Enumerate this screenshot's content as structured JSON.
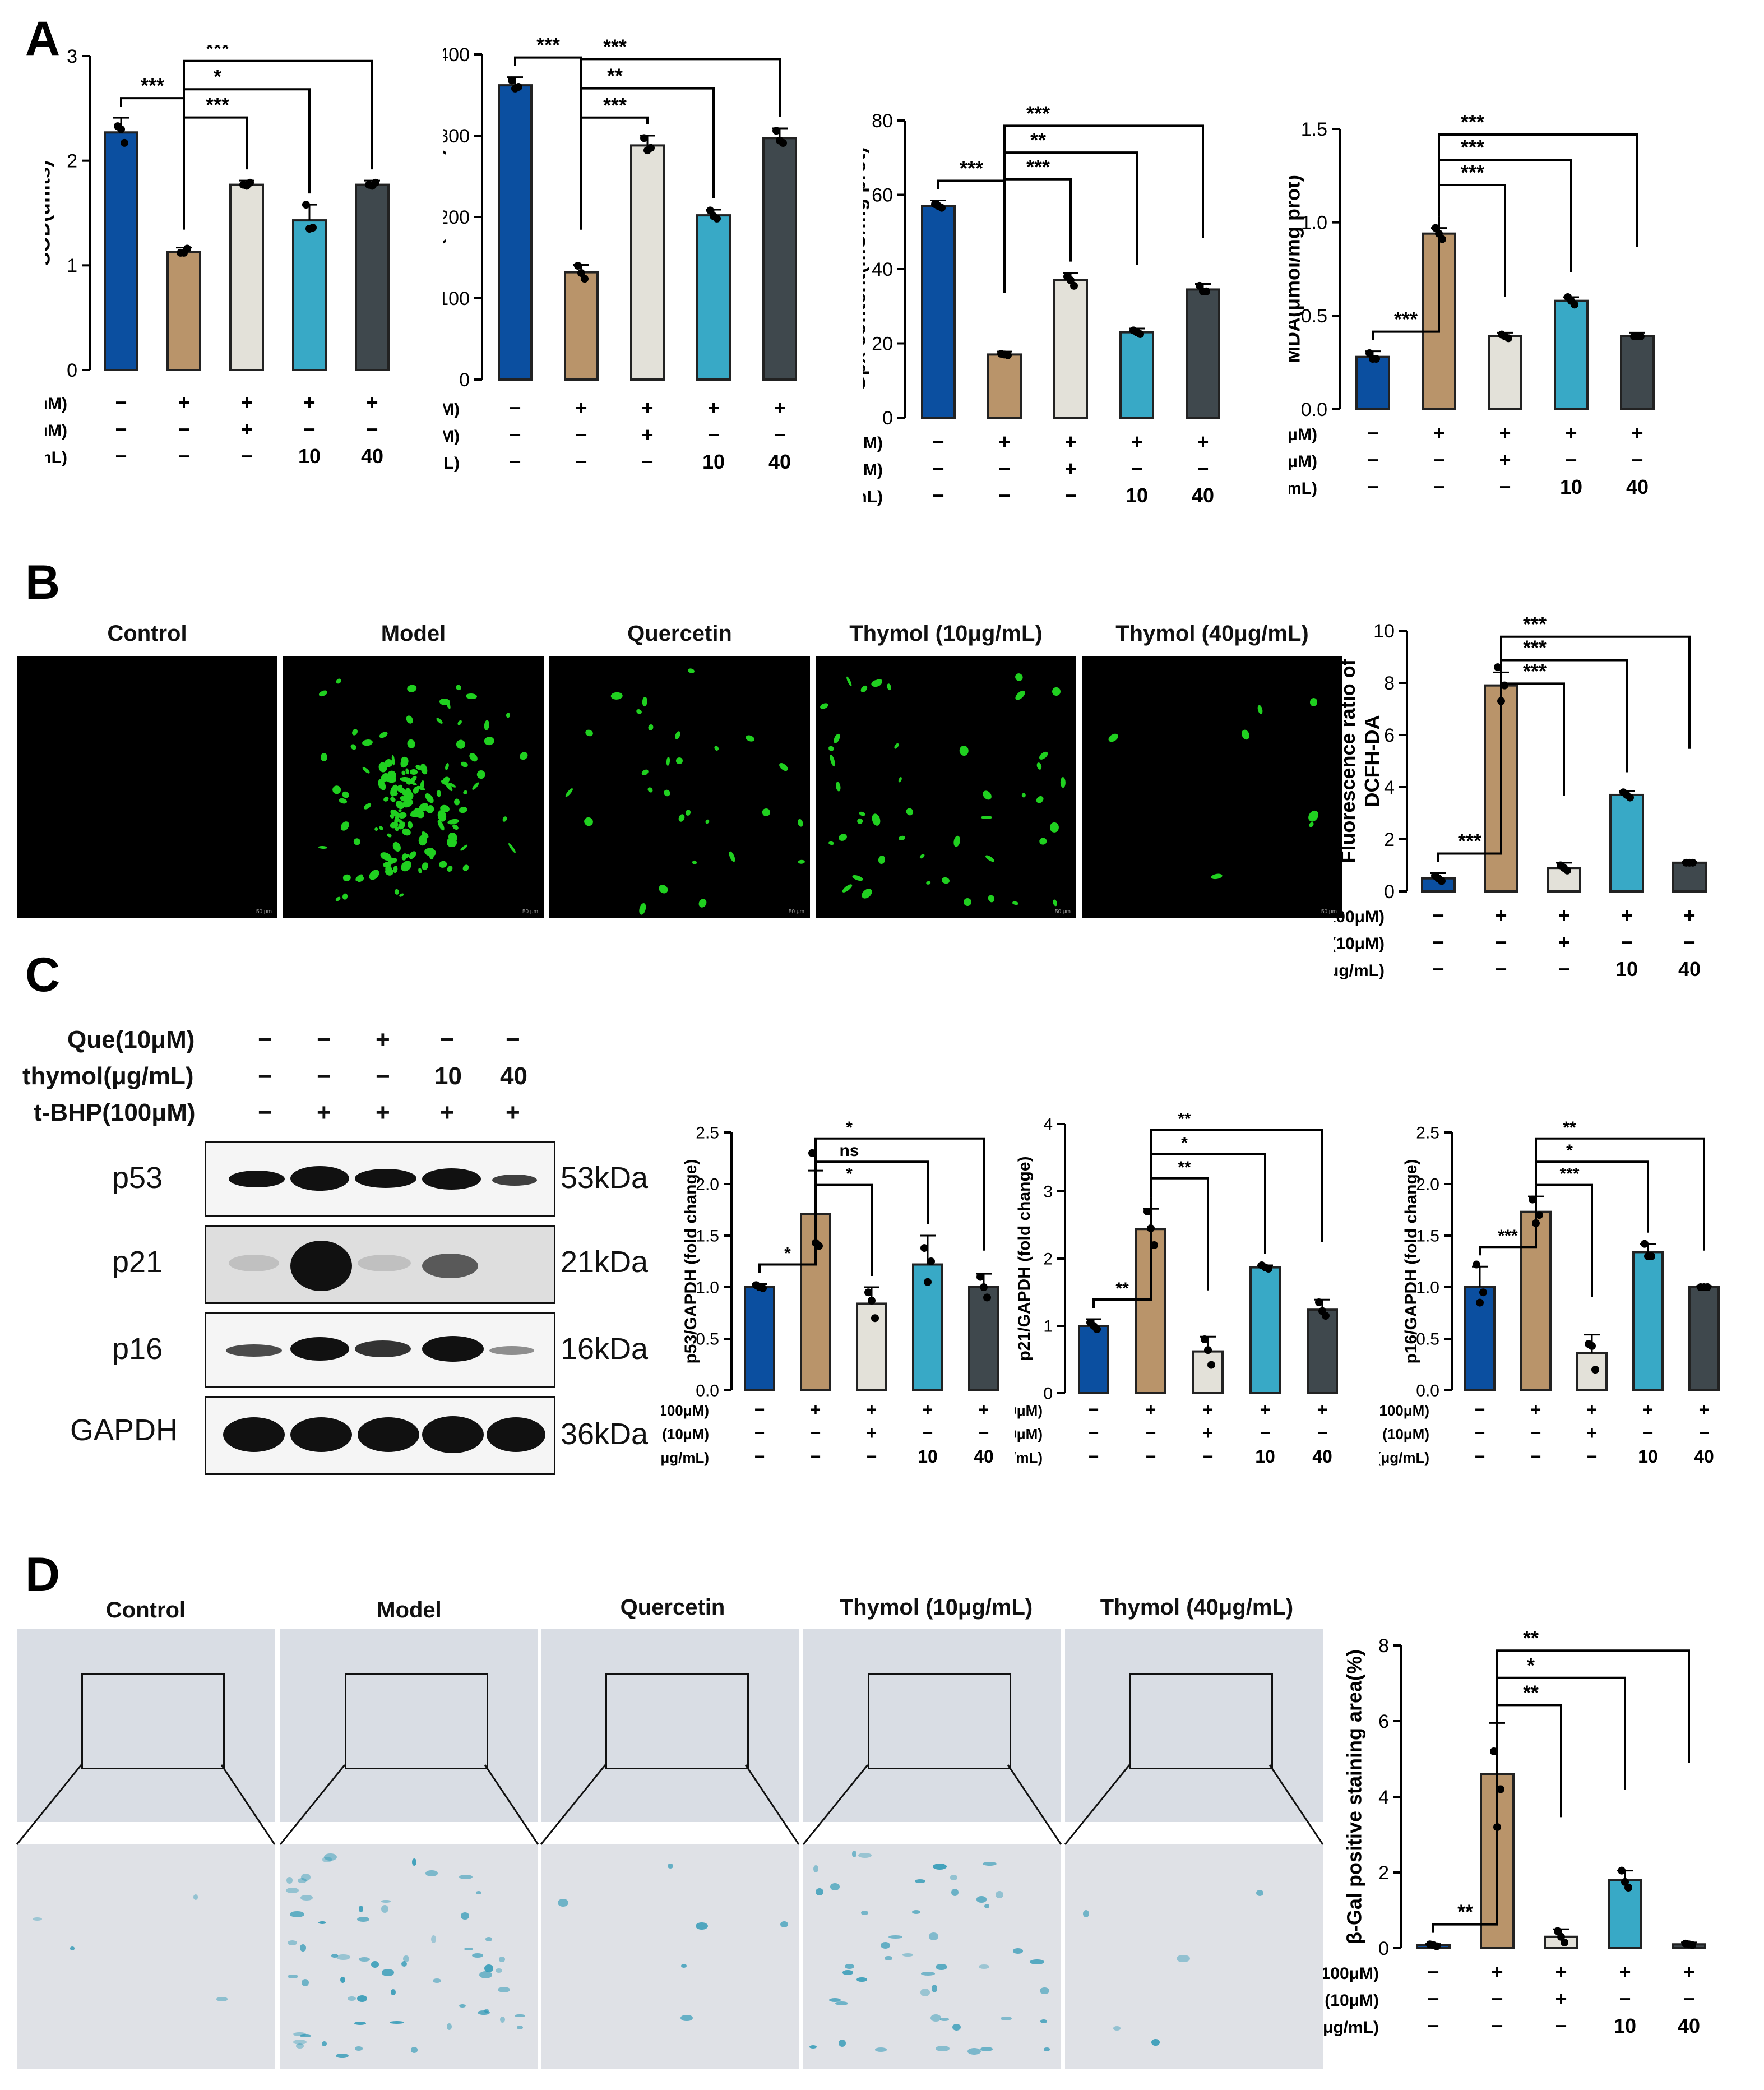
{
  "panel_letters": {
    "A": "A",
    "B": "B",
    "C": "C",
    "D": "D"
  },
  "treatment_row_labels": {
    "tbhp": "t-BHP (100μM)",
    "que": "Que (10μM)",
    "thymol": "thymol (μg/mL)"
  },
  "treatment_row_values": {
    "tbhp": [
      "−",
      "+",
      "+",
      "+",
      "+"
    ],
    "que": [
      "−",
      "−",
      "+",
      "−",
      "−"
    ],
    "thymol": [
      "−",
      "−",
      "−",
      "10",
      "40"
    ]
  },
  "group_titles": [
    "Control",
    "Model",
    "Quercetin",
    "Thymol (10μg/mL)",
    "Thymol (40μg/mL)"
  ],
  "scale_bar_text": "50 μm",
  "colors": {
    "control": "#0b4fa0",
    "model": "#b9946a",
    "quercetin": "#e3e1d9",
    "thymol10": "#38a9c6",
    "thymol40": "#3f484d"
  },
  "wb": {
    "treat_labels": [
      "Que(10μM)",
      "thymol(μg/mL)",
      "t-BHP(100μM)"
    ],
    "treat_values": [
      [
        "−",
        "−",
        "+",
        "−",
        "−"
      ],
      [
        "−",
        "−",
        "−",
        "10",
        "40"
      ],
      [
        "−",
        "+",
        "+",
        "+",
        "+"
      ]
    ],
    "rows": [
      {
        "name": "p53",
        "kda": "53kDa"
      },
      {
        "name": "p21",
        "kda": "21kDa"
      },
      {
        "name": "p16",
        "kda": "16kDa"
      },
      {
        "name": "GAPDH",
        "kda": "36kDa"
      }
    ]
  },
  "chart_data": [
    {
      "id": "sod",
      "type": "bar",
      "ylabel": "SOD(units)",
      "ylim": [
        0,
        3
      ],
      "ticks": [
        0,
        1,
        2,
        3
      ],
      "categories": [
        "Control",
        "Model",
        "Quercetin",
        "Thymol 10",
        "Thymol 40"
      ],
      "values": [
        2.27,
        1.13,
        1.77,
        1.43,
        1.77
      ],
      "errors": [
        0.14,
        0.04,
        0.04,
        0.15,
        0.04
      ],
      "points": [
        [
          2.33,
          2.17,
          2.3
        ],
        [
          1.12,
          1.16,
          1.12
        ],
        [
          1.77,
          1.79,
          1.76
        ],
        [
          1.58,
          1.36,
          1.35
        ],
        [
          1.77,
          1.79,
          1.76
        ]
      ],
      "sig": [
        [
          "***",
          0,
          1
        ],
        [
          "***",
          1,
          2
        ],
        [
          "*",
          1,
          3
        ],
        [
          "***",
          1,
          4
        ]
      ]
    },
    {
      "id": "cat",
      "type": "bar",
      "ylabel": "CAT(units/mL)",
      "ylim": [
        0,
        400
      ],
      "ticks": [
        0,
        100,
        200,
        300,
        400
      ],
      "categories": [
        "Control",
        "Model",
        "Quercetin",
        "Thymol 10",
        "Thymol 40"
      ],
      "values": [
        362,
        132,
        288,
        202,
        297
      ],
      "errors": [
        10,
        9,
        12,
        7,
        12
      ],
      "points": [
        [
          368,
          360,
          358
        ],
        [
          140,
          124,
          131
        ],
        [
          297,
          285,
          282
        ],
        [
          208,
          198,
          201
        ],
        [
          306,
          291,
          294
        ]
      ],
      "sig": [
        [
          "***",
          0,
          1
        ],
        [
          "***",
          1,
          2
        ],
        [
          "**",
          1,
          3
        ],
        [
          "***",
          1,
          4
        ]
      ]
    },
    {
      "id": "gpx",
      "type": "bar",
      "ylabel": "Gpx content(mU/mg prot)",
      "ylim": [
        0,
        80
      ],
      "ticks": [
        0,
        20,
        40,
        60,
        80
      ],
      "categories": [
        "Control",
        "Model",
        "Quercetin",
        "Thymol 10",
        "Thymol 40"
      ],
      "values": [
        57,
        17,
        37,
        23,
        34.5
      ],
      "errors": [
        1.5,
        0.8,
        2,
        1,
        1.5
      ],
      "points": [
        [
          57.5,
          56.5,
          57
        ],
        [
          17.2,
          16.8,
          17
        ],
        [
          38,
          35.5,
          37
        ],
        [
          23.5,
          22.5,
          23
        ],
        [
          35.5,
          34,
          34
        ]
      ],
      "sig": [
        [
          "***",
          0,
          1
        ],
        [
          "***",
          1,
          2
        ],
        [
          "**",
          1,
          3
        ],
        [
          "***",
          1,
          4
        ]
      ]
    },
    {
      "id": "mda",
      "type": "bar",
      "ylabel": "MDA(μmol/mg prot)",
      "ylim": [
        0,
        1.5
      ],
      "ticks": [
        0.0,
        0.5,
        1.0,
        1.5
      ],
      "categories": [
        "Control",
        "Model",
        "Quercetin",
        "Thymol 10",
        "Thymol 40"
      ],
      "values": [
        0.28,
        0.94,
        0.39,
        0.58,
        0.39
      ],
      "errors": [
        0.03,
        0.03,
        0.02,
        0.02,
        0.02
      ],
      "points": [
        [
          0.3,
          0.27,
          0.27
        ],
        [
          0.97,
          0.91,
          0.94
        ],
        [
          0.4,
          0.38,
          0.39
        ],
        [
          0.6,
          0.56,
          0.58
        ],
        [
          0.39,
          0.39,
          0.39
        ]
      ],
      "sig": [
        [
          "***",
          0,
          1
        ],
        [
          "***",
          1,
          2
        ],
        [
          "***",
          1,
          3
        ],
        [
          "***",
          1,
          4
        ]
      ]
    },
    {
      "id": "dcfh",
      "type": "bar",
      "ylabel": "Fluorescence ratio of DCFH-DA",
      "ylim": [
        0,
        10
      ],
      "ticks": [
        0,
        2,
        4,
        6,
        8,
        10
      ],
      "categories": [
        "Control",
        "Model",
        "Quercetin",
        "Thymol 10",
        "Thymol 40"
      ],
      "values": [
        0.5,
        7.9,
        0.9,
        3.7,
        1.1
      ],
      "errors": [
        0.2,
        0.5,
        0.2,
        0.15,
        0.05
      ],
      "points": [
        [
          0.6,
          0.4,
          0.5
        ],
        [
          8.6,
          7.9,
          7.3
        ],
        [
          1.0,
          0.8,
          0.9
        ],
        [
          3.8,
          3.6,
          3.7
        ],
        [
          1.1,
          1.1,
          1.1
        ]
      ],
      "sig": [
        [
          "***",
          0,
          1
        ],
        [
          "***",
          1,
          2
        ],
        [
          "***",
          1,
          3
        ],
        [
          "***",
          1,
          4
        ]
      ]
    },
    {
      "id": "p53",
      "type": "bar",
      "ylabel": "p53/GAPDH (fold change)",
      "ylim": [
        0,
        2.5
      ],
      "ticks": [
        0.0,
        0.5,
        1.0,
        1.5,
        2.0,
        2.5
      ],
      "categories": [
        "Control",
        "Model",
        "Quercetin",
        "Thymol 10",
        "Thymol 40"
      ],
      "values": [
        1.0,
        1.71,
        0.84,
        1.22,
        1.0
      ],
      "errors": [
        0.03,
        0.42,
        0.16,
        0.28,
        0.13
      ],
      "points": [
        [
          1.02,
          0.99,
          1.0
        ],
        [
          2.3,
          1.4,
          1.43
        ],
        [
          0.95,
          0.7,
          0.87
        ],
        [
          1.38,
          1.25,
          1.05
        ],
        [
          1.1,
          0.9,
          1.0
        ]
      ],
      "sig": [
        [
          "*",
          0,
          1
        ],
        [
          "*",
          1,
          2
        ],
        [
          "ns",
          1,
          3
        ],
        [
          "*",
          1,
          4
        ]
      ]
    },
    {
      "id": "p21",
      "type": "bar",
      "ylabel": "p21/GAPDH (fold change)",
      "ylim": [
        0,
        4
      ],
      "ticks": [
        0,
        1,
        2,
        3,
        4
      ],
      "categories": [
        "Control",
        "Model",
        "Quercetin",
        "Thymol 10",
        "Thymol 40"
      ],
      "values": [
        1.0,
        2.44,
        0.62,
        1.87,
        1.24
      ],
      "errors": [
        0.1,
        0.3,
        0.22,
        0.03,
        0.15
      ],
      "points": [
        [
          1.05,
          0.95,
          1.0
        ],
        [
          2.7,
          2.2,
          2.45
        ],
        [
          0.8,
          0.42,
          0.64
        ],
        [
          1.9,
          1.85,
          1.87
        ],
        [
          1.35,
          1.15,
          1.22
        ]
      ],
      "sig": [
        [
          "**",
          0,
          1
        ],
        [
          "**",
          1,
          2
        ],
        [
          "*",
          1,
          3
        ],
        [
          "**",
          1,
          4
        ]
      ]
    },
    {
      "id": "p16",
      "type": "bar",
      "ylabel": "p16/GAPDH (fold change)",
      "ylim": [
        0,
        2.5
      ],
      "ticks": [
        0.0,
        0.5,
        1.0,
        1.5,
        2.0,
        2.5
      ],
      "categories": [
        "Control",
        "Model",
        "Quercetin",
        "Thymol 10",
        "Thymol 40"
      ],
      "values": [
        1.0,
        1.73,
        0.36,
        1.34,
        1.0
      ],
      "errors": [
        0.2,
        0.15,
        0.18,
        0.08,
        0.01
      ],
      "points": [
        [
          1.22,
          0.95,
          0.85
        ],
        [
          1.85,
          1.7,
          1.62
        ],
        [
          0.45,
          0.2,
          0.43
        ],
        [
          1.42,
          1.3,
          1.3
        ],
        [
          1.0,
          1.0,
          1.0
        ]
      ],
      "sig": [
        [
          "***",
          0,
          1
        ],
        [
          "***",
          1,
          2
        ],
        [
          "*",
          1,
          3
        ],
        [
          "**",
          1,
          4
        ]
      ]
    },
    {
      "id": "bgal",
      "type": "bar",
      "ylabel": "β-Gal positive staining area(%)",
      "ylim": [
        0,
        8
      ],
      "ticks": [
        0,
        2,
        4,
        6,
        8
      ],
      "categories": [
        "Control",
        "Model",
        "Quercetin",
        "Thymol 10",
        "Thymol 40"
      ],
      "values": [
        0.08,
        4.6,
        0.3,
        1.8,
        0.1
      ],
      "errors": [
        0.03,
        1.35,
        0.2,
        0.25,
        0.05
      ],
      "points": [
        [
          0.1,
          0.05,
          0.08
        ],
        [
          5.2,
          4.2,
          3.2
        ],
        [
          0.45,
          0.15,
          0.3
        ],
        [
          2.05,
          1.6,
          1.75
        ],
        [
          0.12,
          0.08,
          0.1
        ]
      ],
      "sig": [
        [
          "**",
          0,
          1
        ],
        [
          "**",
          1,
          2
        ],
        [
          "*",
          1,
          3
        ],
        [
          "**",
          1,
          4
        ]
      ]
    }
  ]
}
